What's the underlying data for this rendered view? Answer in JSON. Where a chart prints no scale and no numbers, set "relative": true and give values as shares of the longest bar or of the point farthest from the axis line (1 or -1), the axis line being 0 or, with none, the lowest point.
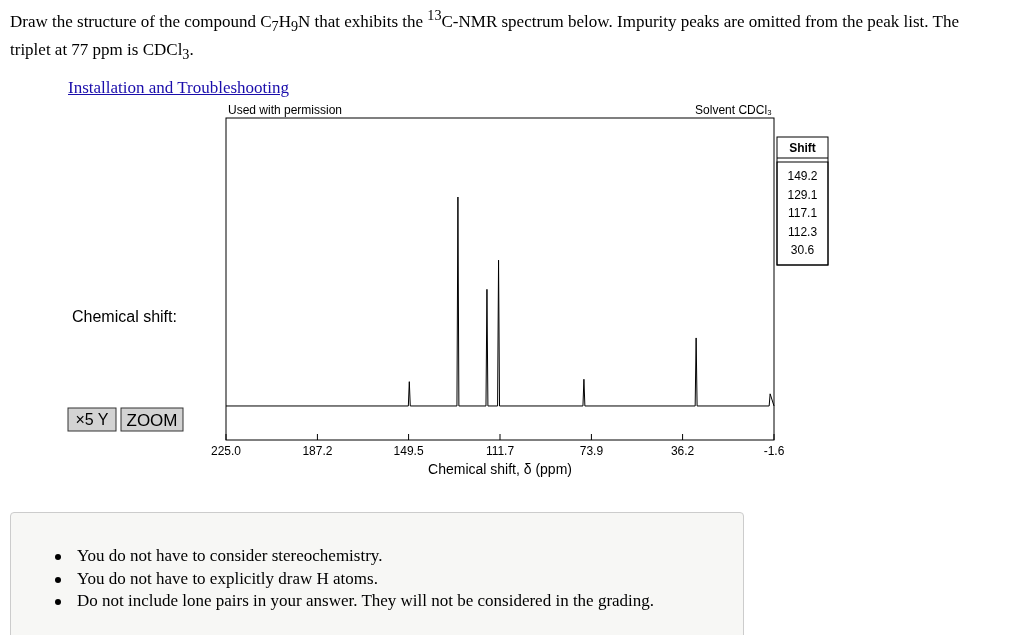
{
  "chart_data": {
    "type": "line",
    "title": "Draw the structure of the compound C$_{7}$H$_{9}$N that exhibits the $^{13}$C-NMR spectrum below. Impurity peaks are omitted from the peak list. The triplet at 77 ppm is CDCl$_{3}$.",
    "subtitle": "Installation and Troubleshooting",
    "xlabel": "Chemical shift, δ (ppm)",
    "relative": true,
    "xlim": [
      225,
      -1.6
    ],
    "xticks": [
      {
        "value": 225,
        "label": "225.0"
      },
      187.2,
      149.5,
      111.7,
      73.9,
      36.2,
      -1.6
    ],
    "series": [
      {
        "color": "#000000",
        "x": [
          225,
          149.6,
          149.2,
          148.8,
          129.5,
          129.1,
          128.7,
          117.5,
          117.1,
          116.7,
          112.7,
          112.3,
          111.9,
          77.4,
          77,
          76.6,
          31,
          30.6,
          30.2,
          0.4,
          0,
          -1.6
        ],
        "values": [
          0.14,
          0.14,
          0.24,
          0.14,
          0.14,
          1,
          0.14,
          0.14,
          0.62,
          0.14,
          0.14,
          0.74,
          0.14,
          0.14,
          0.25,
          0.14,
          0.14,
          0.42,
          0.14,
          0.14,
          0.19,
          0.14
        ]
      }
    ],
    "annotations": [
      "Used with permission",
      "Solvent CDCl₃",
      "Chemical shift:",
      "×5 Y",
      "ZOOM",
      "You do not have to consider stereochemistry.",
      "You do not have to explicitly draw H atoms.",
      "Do not include lone pairs in your answer. They will not be considered in the grading.",
      "Shift",
      "149.2",
      "129.1",
      "117.1",
      "112.3",
      "30.6"
    ]
  }
}
